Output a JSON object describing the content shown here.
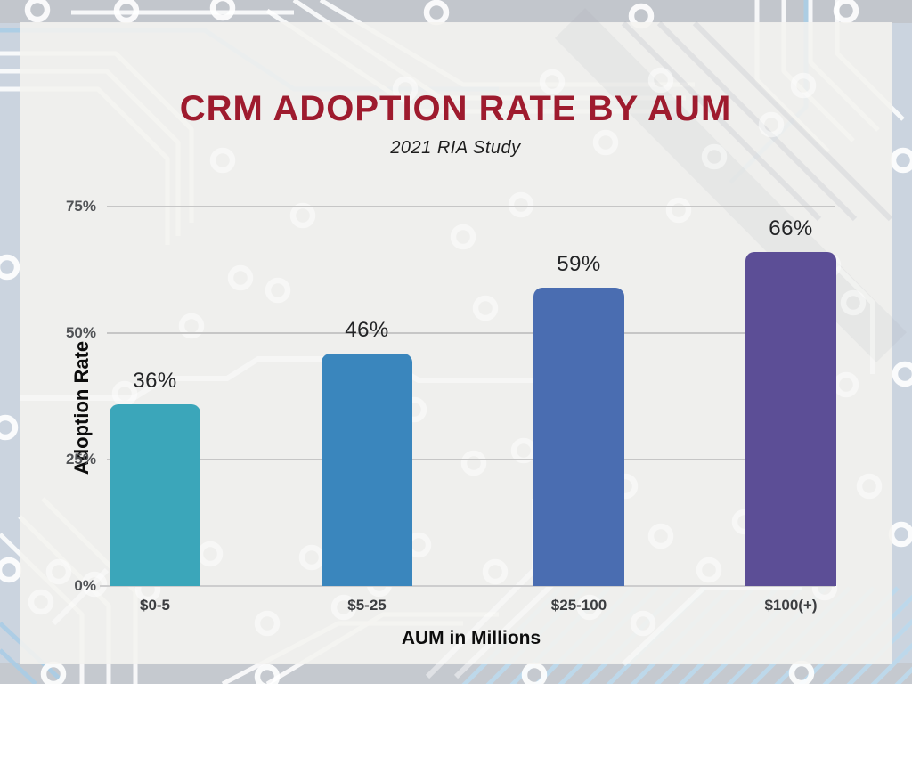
{
  "chart_data": {
    "type": "bar",
    "title": "CRM ADOPTION RATE BY AUM",
    "subtitle": "2021 RIA Study",
    "categories": [
      "$0-5",
      "$5-25",
      "$25-100",
      "$100(+)"
    ],
    "values": [
      36,
      46,
      59,
      66
    ],
    "value_labels": [
      "36%",
      "46%",
      "59%",
      "66%"
    ],
    "xlabel": "AUM in Millions",
    "ylabel": "Adoption Rate",
    "ylim": [
      0,
      75
    ],
    "ytick_values": [
      0,
      25,
      50,
      75
    ],
    "ytick_labels": [
      "0%",
      "25%",
      "50%",
      "75%"
    ],
    "grid": true,
    "legend": false,
    "style": {
      "title_color": "#9E1B2E",
      "bar_colors": [
        "#3BA6BA",
        "#3A86BD",
        "#4A6DB1",
        "#5C4E96"
      ],
      "grid_color": "#c6c6c6",
      "baseline_color": "#cdcdce",
      "panel_bg": "#f4f2ef",
      "outer_bg": "#cbd4df"
    }
  }
}
